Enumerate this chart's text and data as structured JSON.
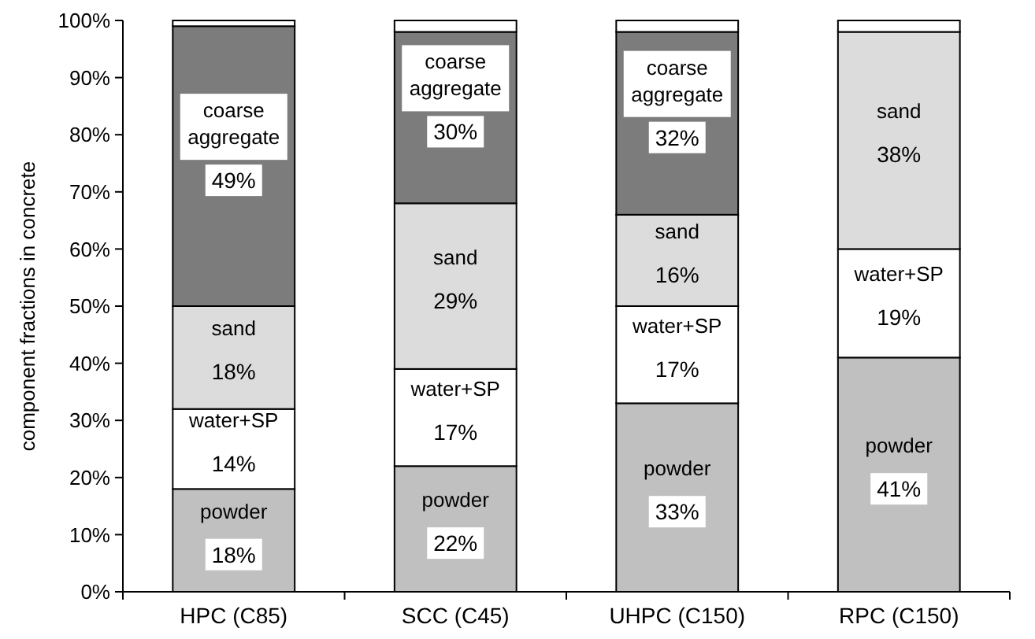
{
  "chart_data": {
    "type": "bar",
    "stacked": true,
    "ylabel": "component fractions in concrete",
    "categories": [
      "HPC (C85)",
      "SCC (C45)",
      "UHPC (C150)",
      "RPC (C150)"
    ],
    "series": [
      {
        "name": "powder",
        "color": "#c0c0c0",
        "values": [
          18,
          22,
          33,
          41
        ],
        "value_labels": [
          "18%",
          "22%",
          "33%",
          "41%"
        ]
      },
      {
        "name": "water+SP",
        "color": "#ffffff",
        "values": [
          14,
          17,
          17,
          19
        ],
        "value_labels": [
          "14%",
          "17%",
          "17%",
          "19%"
        ]
      },
      {
        "name": "sand",
        "color": "#dcdcdc",
        "values": [
          18,
          29,
          16,
          38
        ],
        "value_labels": [
          "18%",
          "29%",
          "16%",
          "38%"
        ]
      },
      {
        "name": "coarse aggregate",
        "color": "#7c7c7c",
        "values": [
          49,
          30,
          32,
          0
        ],
        "value_labels": [
          "49%",
          "30%",
          "32%",
          null
        ]
      },
      {
        "color": "#ffffff",
        "values": [
          1,
          2,
          2,
          2
        ]
      }
    ],
    "ylim": [
      0,
      100
    ],
    "yticks": [
      {
        "value": 0,
        "label": "0%"
      },
      {
        "value": 10,
        "label": "10%"
      },
      {
        "value": 20,
        "label": "20%"
      },
      {
        "value": 30,
        "label": "30%"
      },
      {
        "value": 40,
        "label": "40%"
      },
      {
        "value": 50,
        "label": "50%"
      },
      {
        "value": 60,
        "label": "60%"
      },
      {
        "value": 70,
        "label": "70%"
      },
      {
        "value": 80,
        "label": "80%"
      },
      {
        "value": 90,
        "label": "90%"
      },
      {
        "value": 100,
        "label": "100%"
      }
    ],
    "grid": false
  }
}
